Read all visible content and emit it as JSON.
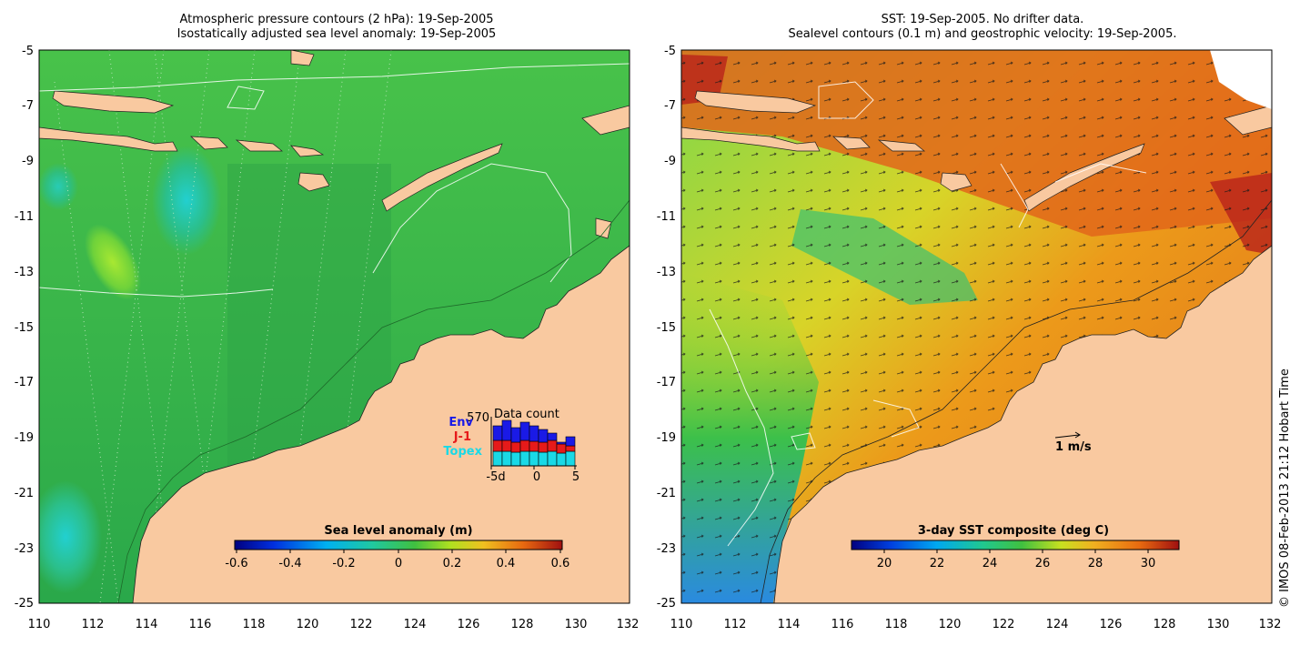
{
  "left_panel": {
    "title_line1": "Atmospheric pressure contours (2 hPa): 19-Sep-2005",
    "title_line2": "Isostatically adjusted sea level anomaly: 19-Sep-2005",
    "lat_ticks": [
      "-5",
      "-7",
      "-9",
      "-11",
      "-13",
      "-15",
      "-17",
      "-19",
      "-21",
      "-23",
      "-25"
    ],
    "lon_ticks": [
      "110",
      "112",
      "114",
      "116",
      "118",
      "120",
      "122",
      "124",
      "126",
      "128",
      "130",
      "132"
    ],
    "colorbar": {
      "label": "Sea level anomaly (m)",
      "ticks": [
        "-0.6",
        "-0.4",
        "-0.2",
        "0",
        "0.2",
        "0.4",
        "0.6"
      ],
      "range": [
        -0.6,
        0.6
      ]
    },
    "data_count": {
      "title": "Data count",
      "max_label": "570",
      "series": [
        {
          "name": "Env",
          "color": "#1a1ae6"
        },
        {
          "name": "J-1",
          "color": "#e61a1a"
        },
        {
          "name": "Topex",
          "color": "#1ad9e6"
        }
      ],
      "x_ticks": [
        "-5d",
        "0",
        "5"
      ]
    }
  },
  "right_panel": {
    "title_line1": "SST: 19-Sep-2005. No drifter data.",
    "title_line2": "Sealevel contours (0.1 m) and geostrophic velocity: 19-Sep-2005.",
    "lat_ticks": [
      "-5",
      "-7",
      "-9",
      "-11",
      "-13",
      "-15",
      "-17",
      "-19",
      "-21",
      "-23",
      "-25"
    ],
    "lon_ticks": [
      "110",
      "112",
      "114",
      "116",
      "118",
      "120",
      "122",
      "124",
      "126",
      "128",
      "130",
      "132"
    ],
    "velocity_key": "1 m/s",
    "colorbar": {
      "label": "3-day SST composite (deg C)",
      "ticks": [
        "20",
        "22",
        "24",
        "26",
        "28",
        "30"
      ],
      "range": [
        18.5,
        31
      ]
    }
  },
  "credit": "© IMOS 08-Feb-2013 21:12 Hobart Time",
  "colors": {
    "land": "#f9c9a0",
    "ocean_green": "#3cb83c",
    "sst_orange": "#e9731a",
    "sst_blue": "#2a8ae0"
  }
}
